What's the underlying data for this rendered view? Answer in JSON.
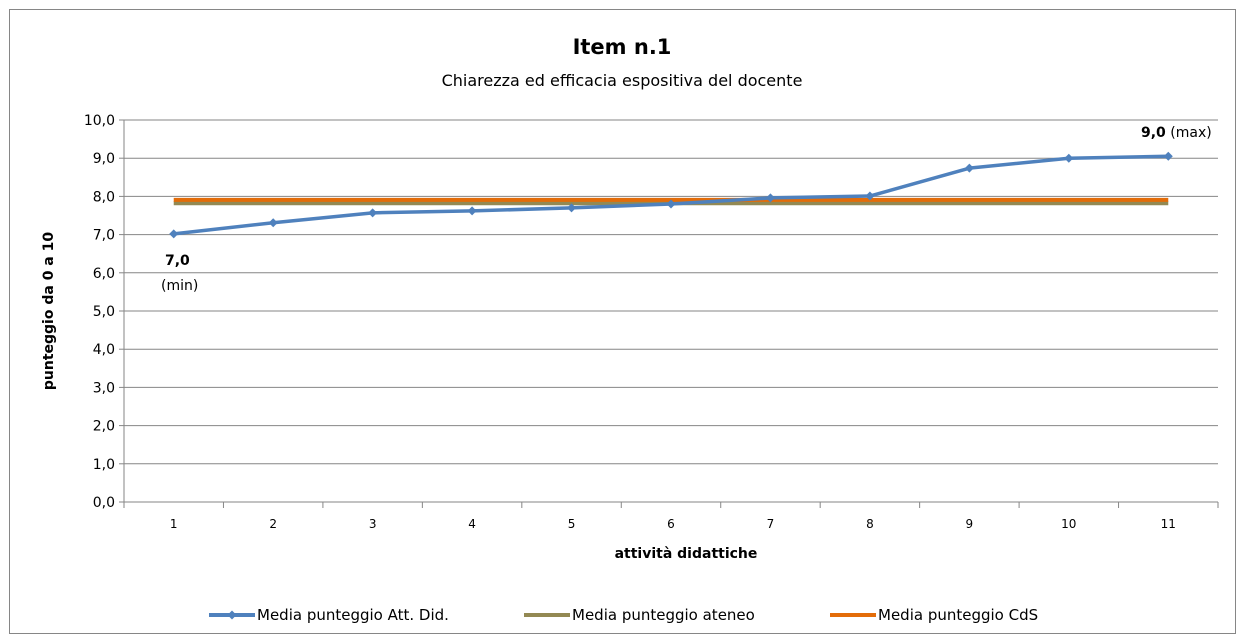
{
  "chart_data": {
    "type": "line",
    "title": "Item n.1",
    "subtitle": "Chiarezza ed efficacia espositiva del docente",
    "xlabel": "attività didattiche",
    "ylabel": "punteggio da 0 a 10",
    "categories": [
      "1",
      "2",
      "3",
      "4",
      "5",
      "6",
      "7",
      "8",
      "9",
      "10",
      "11"
    ],
    "ylim": [
      0,
      10
    ],
    "yticks": [
      "0,0",
      "1,0",
      "2,0",
      "3,0",
      "4,0",
      "5,0",
      "6,0",
      "7,0",
      "8,0",
      "9,0",
      "10,0"
    ],
    "grid": true,
    "legend_position": "bottom",
    "series": [
      {
        "name": "Media punteggio Att. Did.",
        "color": "#4F81BD",
        "marker": "diamond",
        "values": [
          7.02,
          7.31,
          7.57,
          7.62,
          7.7,
          7.8,
          7.96,
          8.01,
          8.74,
          9.0,
          9.05
        ]
      },
      {
        "name": "Media punteggio ateneo",
        "color": "#938953",
        "values": [
          7.82,
          7.82,
          7.82,
          7.82,
          7.82,
          7.82,
          7.82,
          7.82,
          7.82,
          7.82,
          7.82
        ]
      },
      {
        "name": "Media punteggio CdS",
        "color": "#E36C09",
        "values": [
          7.91,
          7.91,
          7.91,
          7.91,
          7.91,
          7.91,
          7.91,
          7.91,
          7.91,
          7.91,
          7.91
        ]
      }
    ],
    "annotations": {
      "min": {
        "value": "7,0",
        "label": "(min)"
      },
      "max": {
        "value": "9,0",
        "label": "(max)"
      }
    }
  }
}
